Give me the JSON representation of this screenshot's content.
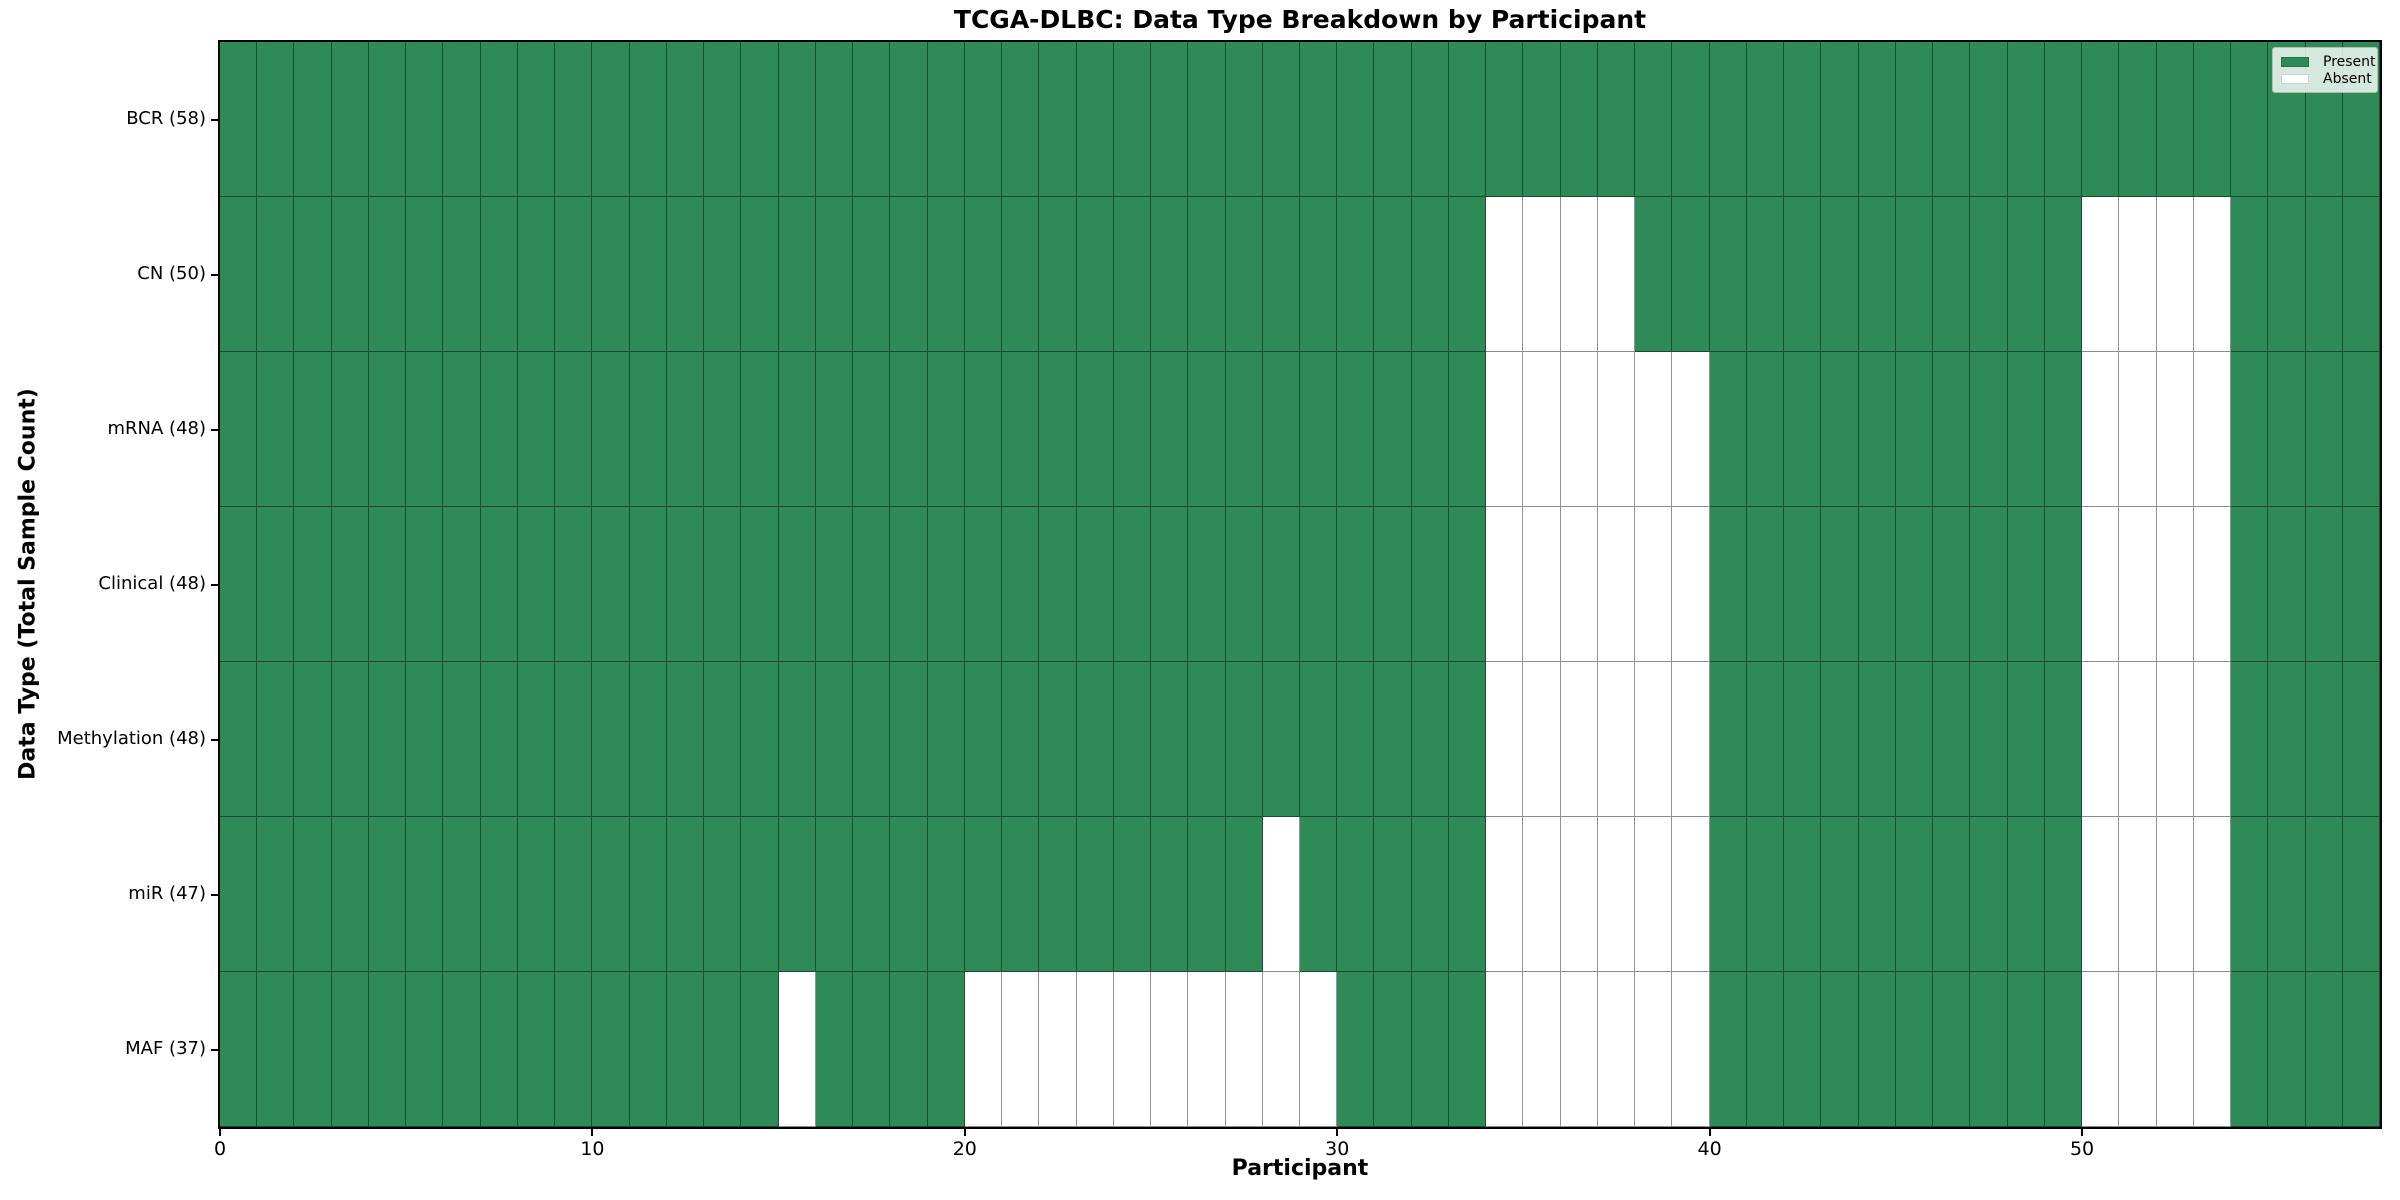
{
  "figure": {
    "title": "TCGA-DLBC: Data Type Breakdown by Participant",
    "xlabel": "Participant",
    "ylabel": "Data Type (Total Sample Count)"
  },
  "legend": {
    "present_label": "Present",
    "absent_label": "Absent"
  },
  "chart_data": {
    "type": "heatmap",
    "title": "TCGA-DLBC: Data Type Breakdown by Participant",
    "xlabel": "Participant",
    "ylabel": "Data Type (Total Sample Count)",
    "x_ticks": [
      0,
      10,
      20,
      30,
      40,
      50
    ],
    "x_range": [
      0,
      58
    ],
    "n_participants": 58,
    "grid": true,
    "legend_position": "upper right",
    "legend_entries": [
      {
        "label": "Present",
        "color": "#2E8B57"
      },
      {
        "label": "Absent",
        "color": "#FFFFFF"
      }
    ],
    "colors": {
      "present": "#2E8B57",
      "absent": "#FFFFFF",
      "grid_line": "rgba(0,0,0,0.42)",
      "spine": "#000000",
      "legend_background": "rgba(255,255,255,0.8)"
    },
    "rows": [
      {
        "label": "BCR (58)",
        "data_type": "BCR",
        "present_count": 58,
        "absent_participants": []
      },
      {
        "label": "CN (50)",
        "data_type": "CN",
        "present_count": 50,
        "absent_participants": [
          34,
          35,
          36,
          37,
          50,
          51,
          52,
          53
        ]
      },
      {
        "label": "mRNA (48)",
        "data_type": "mRNA",
        "present_count": 48,
        "absent_participants": [
          34,
          35,
          36,
          37,
          38,
          39,
          50,
          51,
          52,
          53
        ]
      },
      {
        "label": "Clinical (48)",
        "data_type": "Clinical",
        "present_count": 48,
        "absent_participants": [
          34,
          35,
          36,
          37,
          38,
          39,
          50,
          51,
          52,
          53
        ]
      },
      {
        "label": "Methylation (48)",
        "data_type": "Methylation",
        "present_count": 48,
        "absent_participants": [
          34,
          35,
          36,
          37,
          38,
          39,
          50,
          51,
          52,
          53
        ]
      },
      {
        "label": "miR (47)",
        "data_type": "miR",
        "present_count": 47,
        "absent_participants": [
          28,
          34,
          35,
          36,
          37,
          38,
          39,
          50,
          51,
          52,
          53
        ]
      },
      {
        "label": "MAF (37)",
        "data_type": "MAF",
        "present_count": 37,
        "absent_participants": [
          15,
          20,
          21,
          22,
          23,
          24,
          25,
          26,
          27,
          28,
          29,
          34,
          35,
          36,
          37,
          38,
          39,
          50,
          51,
          52,
          53
        ]
      }
    ]
  }
}
